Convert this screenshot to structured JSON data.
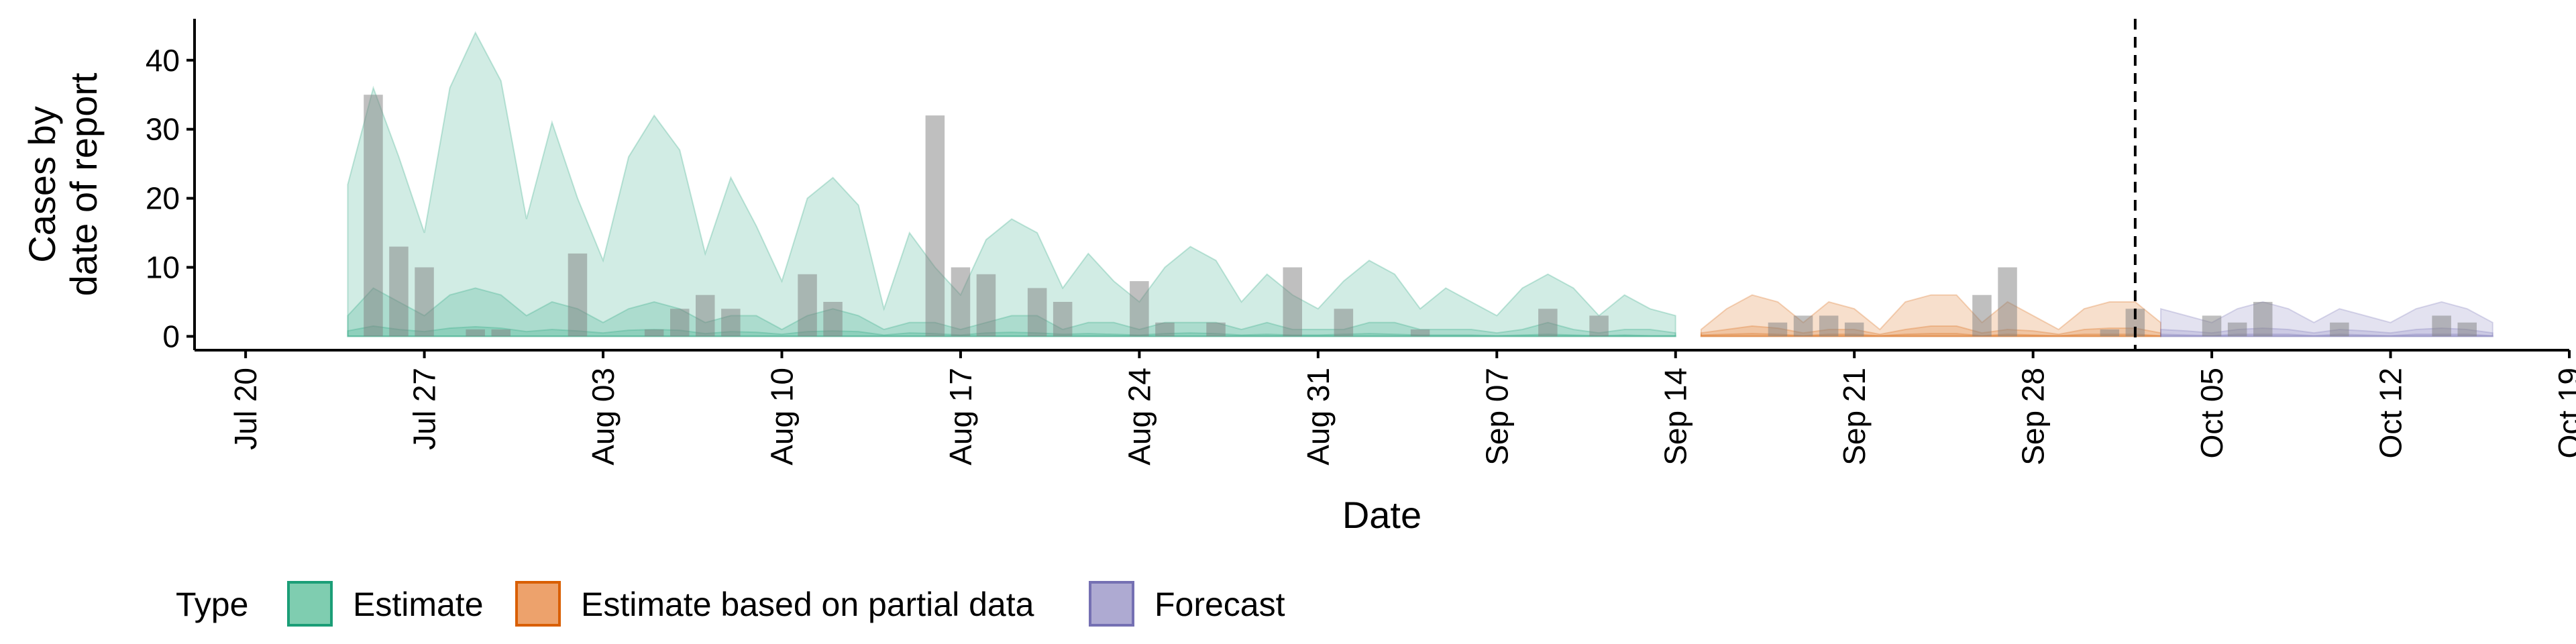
{
  "chart_data": {
    "type": "area",
    "xlabel": "Date",
    "ylabel_lines": [
      "Cases by",
      "date of report"
    ],
    "ylim": [
      -2,
      46
    ],
    "y_ticks": [
      0,
      10,
      20,
      30,
      40
    ],
    "x_range": [
      "2020-07-18",
      "2020-10-19"
    ],
    "x_ticks": [
      {
        "date": "2020-07-20",
        "label": "Jul 20"
      },
      {
        "date": "2020-07-27",
        "label": "Jul 27"
      },
      {
        "date": "2020-08-03",
        "label": "Aug 03"
      },
      {
        "date": "2020-08-10",
        "label": "Aug 10"
      },
      {
        "date": "2020-08-17",
        "label": "Aug 17"
      },
      {
        "date": "2020-08-24",
        "label": "Aug 24"
      },
      {
        "date": "2020-08-31",
        "label": "Aug 31"
      },
      {
        "date": "2020-09-07",
        "label": "Sep 07"
      },
      {
        "date": "2020-09-14",
        "label": "Sep 14"
      },
      {
        "date": "2020-09-21",
        "label": "Sep 21"
      },
      {
        "date": "2020-09-28",
        "label": "Sep 28"
      },
      {
        "date": "2020-10-05",
        "label": "Oct 05"
      },
      {
        "date": "2020-10-12",
        "label": "Oct 12"
      },
      {
        "date": "2020-10-19",
        "label": "Oct 19"
      }
    ],
    "forecast_start": "2020-10-02",
    "legend": {
      "title": "Type",
      "position": "bottom",
      "items": [
        {
          "label": "Estimate",
          "fill": "#7fcdb0",
          "stroke": "#1b9e77"
        },
        {
          "label": "Estimate based on partial data",
          "fill": "#eda26c",
          "stroke": "#d95f02"
        },
        {
          "label": "Forecast",
          "fill": "#aeaad2",
          "stroke": "#7570b3"
        }
      ]
    },
    "series": [
      {
        "type_ref": 0,
        "color": "#1b9e77",
        "start": "2020-07-24",
        "upper90": [
          22,
          36,
          26,
          15,
          36,
          44,
          37,
          17,
          31,
          20,
          11,
          26,
          32,
          27,
          12,
          23,
          16,
          8,
          20,
          23,
          19,
          4,
          15,
          10,
          6,
          14,
          17,
          15,
          7,
          12,
          8,
          5,
          10,
          13,
          11,
          5,
          9,
          6,
          4,
          8,
          11,
          9,
          4,
          7,
          5,
          3,
          7,
          9,
          7,
          3,
          6,
          4,
          3
        ],
        "lower90": [
          0,
          0,
          0,
          0,
          0,
          0,
          0,
          0,
          0,
          0,
          0,
          0,
          0,
          0,
          0,
          0,
          0,
          0,
          0,
          0,
          0,
          0,
          0,
          0,
          0,
          0,
          0,
          0,
          0,
          0,
          0,
          0,
          0,
          0,
          0,
          0,
          0,
          0,
          0,
          0,
          0,
          0,
          0,
          0,
          0,
          0,
          0,
          0,
          0,
          0,
          0,
          0,
          0
        ],
        "upper50": [
          3,
          7,
          5,
          3,
          6,
          7,
          6,
          3,
          5,
          4,
          2,
          4,
          5,
          4,
          2,
          3,
          3,
          1,
          3,
          4,
          3,
          1,
          2,
          2,
          1,
          2,
          3,
          3,
          1,
          2,
          2,
          1,
          2,
          2,
          2,
          1,
          2,
          1,
          1,
          1,
          2,
          2,
          1,
          1,
          1,
          0.5,
          1,
          2,
          1,
          0.5,
          1,
          1,
          0.5
        ],
        "lower50": [
          0,
          0,
          0,
          0,
          0,
          0,
          0,
          0,
          0,
          0,
          0,
          0,
          0,
          0,
          0,
          0,
          0,
          0,
          0,
          0,
          0,
          0,
          0,
          0,
          0,
          0,
          0,
          0,
          0,
          0,
          0,
          0,
          0,
          0,
          0,
          0,
          0,
          0,
          0,
          0,
          0,
          0,
          0,
          0,
          0,
          0,
          0,
          0,
          0,
          0,
          0,
          0,
          0
        ],
        "upper20": [
          0.8,
          1.5,
          1,
          0.7,
          1.2,
          1.4,
          1.2,
          0.7,
          1,
          0.8,
          0.5,
          0.9,
          1,
          0.9,
          0.4,
          0.7,
          0.6,
          0.3,
          0.7,
          0.8,
          0.7,
          0.2,
          0.5,
          0.4,
          0.2,
          0.5,
          0.6,
          0.5,
          0.3,
          0.4,
          0.3,
          0.2,
          0.4,
          0.5,
          0.4,
          0.2,
          0.3,
          0.2,
          0.2,
          0.3,
          0.4,
          0.3,
          0.2,
          0.2,
          0.2,
          0.1,
          0.2,
          0.3,
          0.2,
          0.1,
          0.2,
          0.1,
          0.1
        ],
        "lower20": [
          0,
          0,
          0,
          0,
          0,
          0,
          0,
          0,
          0,
          0,
          0,
          0,
          0,
          0,
          0,
          0,
          0,
          0,
          0,
          0,
          0,
          0,
          0,
          0,
          0,
          0,
          0,
          0,
          0,
          0,
          0,
          0,
          0,
          0,
          0,
          0,
          0,
          0,
          0,
          0,
          0,
          0,
          0,
          0,
          0,
          0,
          0,
          0,
          0,
          0,
          0,
          0,
          0
        ]
      },
      {
        "type_ref": 1,
        "color": "#d95f02",
        "start": "2020-09-15",
        "upper90": [
          1,
          4,
          6,
          5,
          2,
          5,
          4,
          1,
          5,
          6,
          6,
          2,
          5,
          3,
          1,
          4,
          5,
          5,
          2
        ],
        "lower90": [
          0,
          0,
          0,
          0,
          0,
          0,
          0,
          0,
          0,
          0,
          0,
          0,
          0,
          0,
          0,
          0,
          0,
          0,
          0
        ],
        "upper50": [
          0.5,
          1,
          1.5,
          1.2,
          0.5,
          1,
          1,
          0.3,
          1,
          1.5,
          1.5,
          0.5,
          1,
          0.8,
          0.3,
          1,
          1.2,
          1.2,
          0.5
        ],
        "lower50": [
          0,
          0,
          0,
          0,
          0,
          0,
          0,
          0,
          0,
          0,
          0,
          0,
          0,
          0,
          0,
          0,
          0,
          0,
          0
        ],
        "upper20": [
          0.2,
          0.3,
          0.4,
          0.3,
          0.1,
          0.3,
          0.3,
          0.1,
          0.3,
          0.4,
          0.4,
          0.1,
          0.3,
          0.2,
          0.1,
          0.3,
          0.3,
          0.3,
          0.1
        ],
        "lower20": [
          0,
          0,
          0,
          0,
          0,
          0,
          0,
          0,
          0,
          0,
          0,
          0,
          0,
          0,
          0,
          0,
          0,
          0,
          0
        ]
      },
      {
        "type_ref": 2,
        "color": "#7570b3",
        "start": "2020-10-03",
        "upper90": [
          4,
          3,
          2,
          4,
          5,
          4,
          2,
          4,
          3,
          2,
          4,
          5,
          4,
          2
        ],
        "lower90": [
          0,
          0,
          0,
          0,
          0,
          0,
          0,
          0,
          0,
          0,
          0,
          0,
          0,
          0
        ],
        "upper50": [
          1,
          0.8,
          0.5,
          1,
          1.2,
          1,
          0.5,
          1,
          0.8,
          0.5,
          1,
          1.2,
          1,
          0.5
        ],
        "lower50": [
          0,
          0,
          0,
          0,
          0,
          0,
          0,
          0,
          0,
          0,
          0,
          0,
          0,
          0
        ],
        "upper20": [
          0.3,
          0.2,
          0.1,
          0.3,
          0.3,
          0.3,
          0.1,
          0.3,
          0.2,
          0.1,
          0.3,
          0.3,
          0.3,
          0.1
        ],
        "lower20": [
          0,
          0,
          0,
          0,
          0,
          0,
          0,
          0,
          0,
          0,
          0,
          0,
          0,
          0
        ]
      }
    ],
    "reported_cases": {
      "color": "#7f7f7f",
      "start": "2020-07-25",
      "values": [
        35,
        13,
        10,
        0,
        1,
        1,
        0,
        0,
        12,
        0,
        0,
        1,
        4,
        6,
        4,
        0,
        0,
        9,
        5,
        0,
        0,
        0,
        32,
        10,
        9,
        0,
        7,
        5,
        0,
        0,
        8,
        2,
        0,
        2,
        0,
        0,
        10,
        0,
        4,
        0,
        0,
        1,
        0,
        0,
        0,
        0,
        4,
        0,
        3,
        0,
        0,
        0,
        0,
        0,
        0,
        2,
        3,
        3,
        2,
        0,
        0,
        0,
        0,
        6,
        10,
        0,
        0,
        0,
        1,
        4,
        0,
        0,
        3,
        2,
        5,
        0,
        0,
        2,
        0,
        0,
        0,
        3,
        2
      ]
    }
  }
}
